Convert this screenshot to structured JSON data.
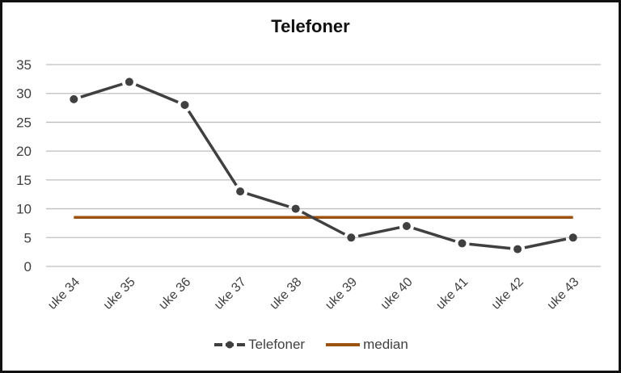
{
  "chart_data": {
    "type": "line",
    "title": "Telefoner",
    "xlabel": "",
    "ylabel": "",
    "categories": [
      "uke 34",
      "uke 35",
      "uke 36",
      "uke 37",
      "uke 38",
      "uke 39",
      "uke 40",
      "uke 41",
      "uke 42",
      "uke 43"
    ],
    "series": [
      {
        "name": "Telefoner",
        "values": [
          29,
          32,
          28,
          13,
          10,
          5,
          7,
          4,
          3,
          5
        ],
        "color": "#404040",
        "marker": "circle"
      },
      {
        "name": "median",
        "values": [
          8.5,
          8.5,
          8.5,
          8.5,
          8.5,
          8.5,
          8.5,
          8.5,
          8.5,
          8.5
        ],
        "color": "#9c5210"
      }
    ],
    "yticks": [
      0,
      5,
      10,
      15,
      20,
      25,
      30,
      35
    ],
    "ylim": [
      0,
      35
    ],
    "grid": true,
    "legend_position": "bottom"
  },
  "legend": {
    "telefoner_label": "Telefoner",
    "median_label": "median"
  }
}
